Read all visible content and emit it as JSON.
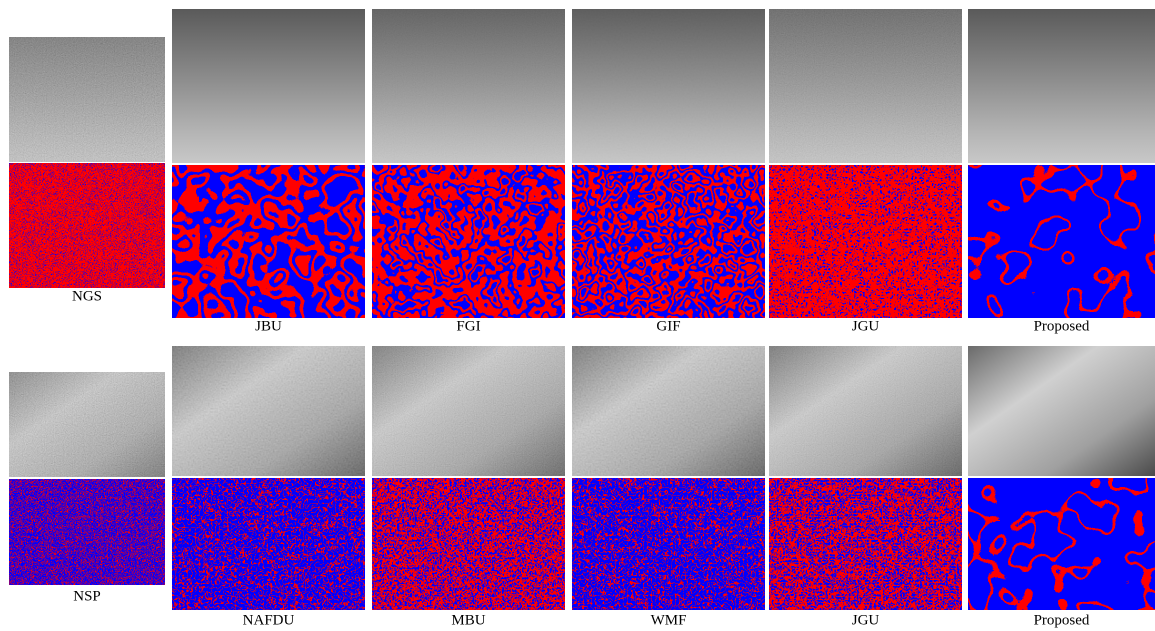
{
  "row1": {
    "input_label": "NGS",
    "methods": [
      "JBU",
      "FGI",
      "GIF",
      "JGU",
      "Proposed"
    ]
  },
  "row2": {
    "input_label": "NSP",
    "methods": [
      "NAFDU",
      "MBU",
      "WMF",
      "JGU",
      "Proposed"
    ]
  }
}
